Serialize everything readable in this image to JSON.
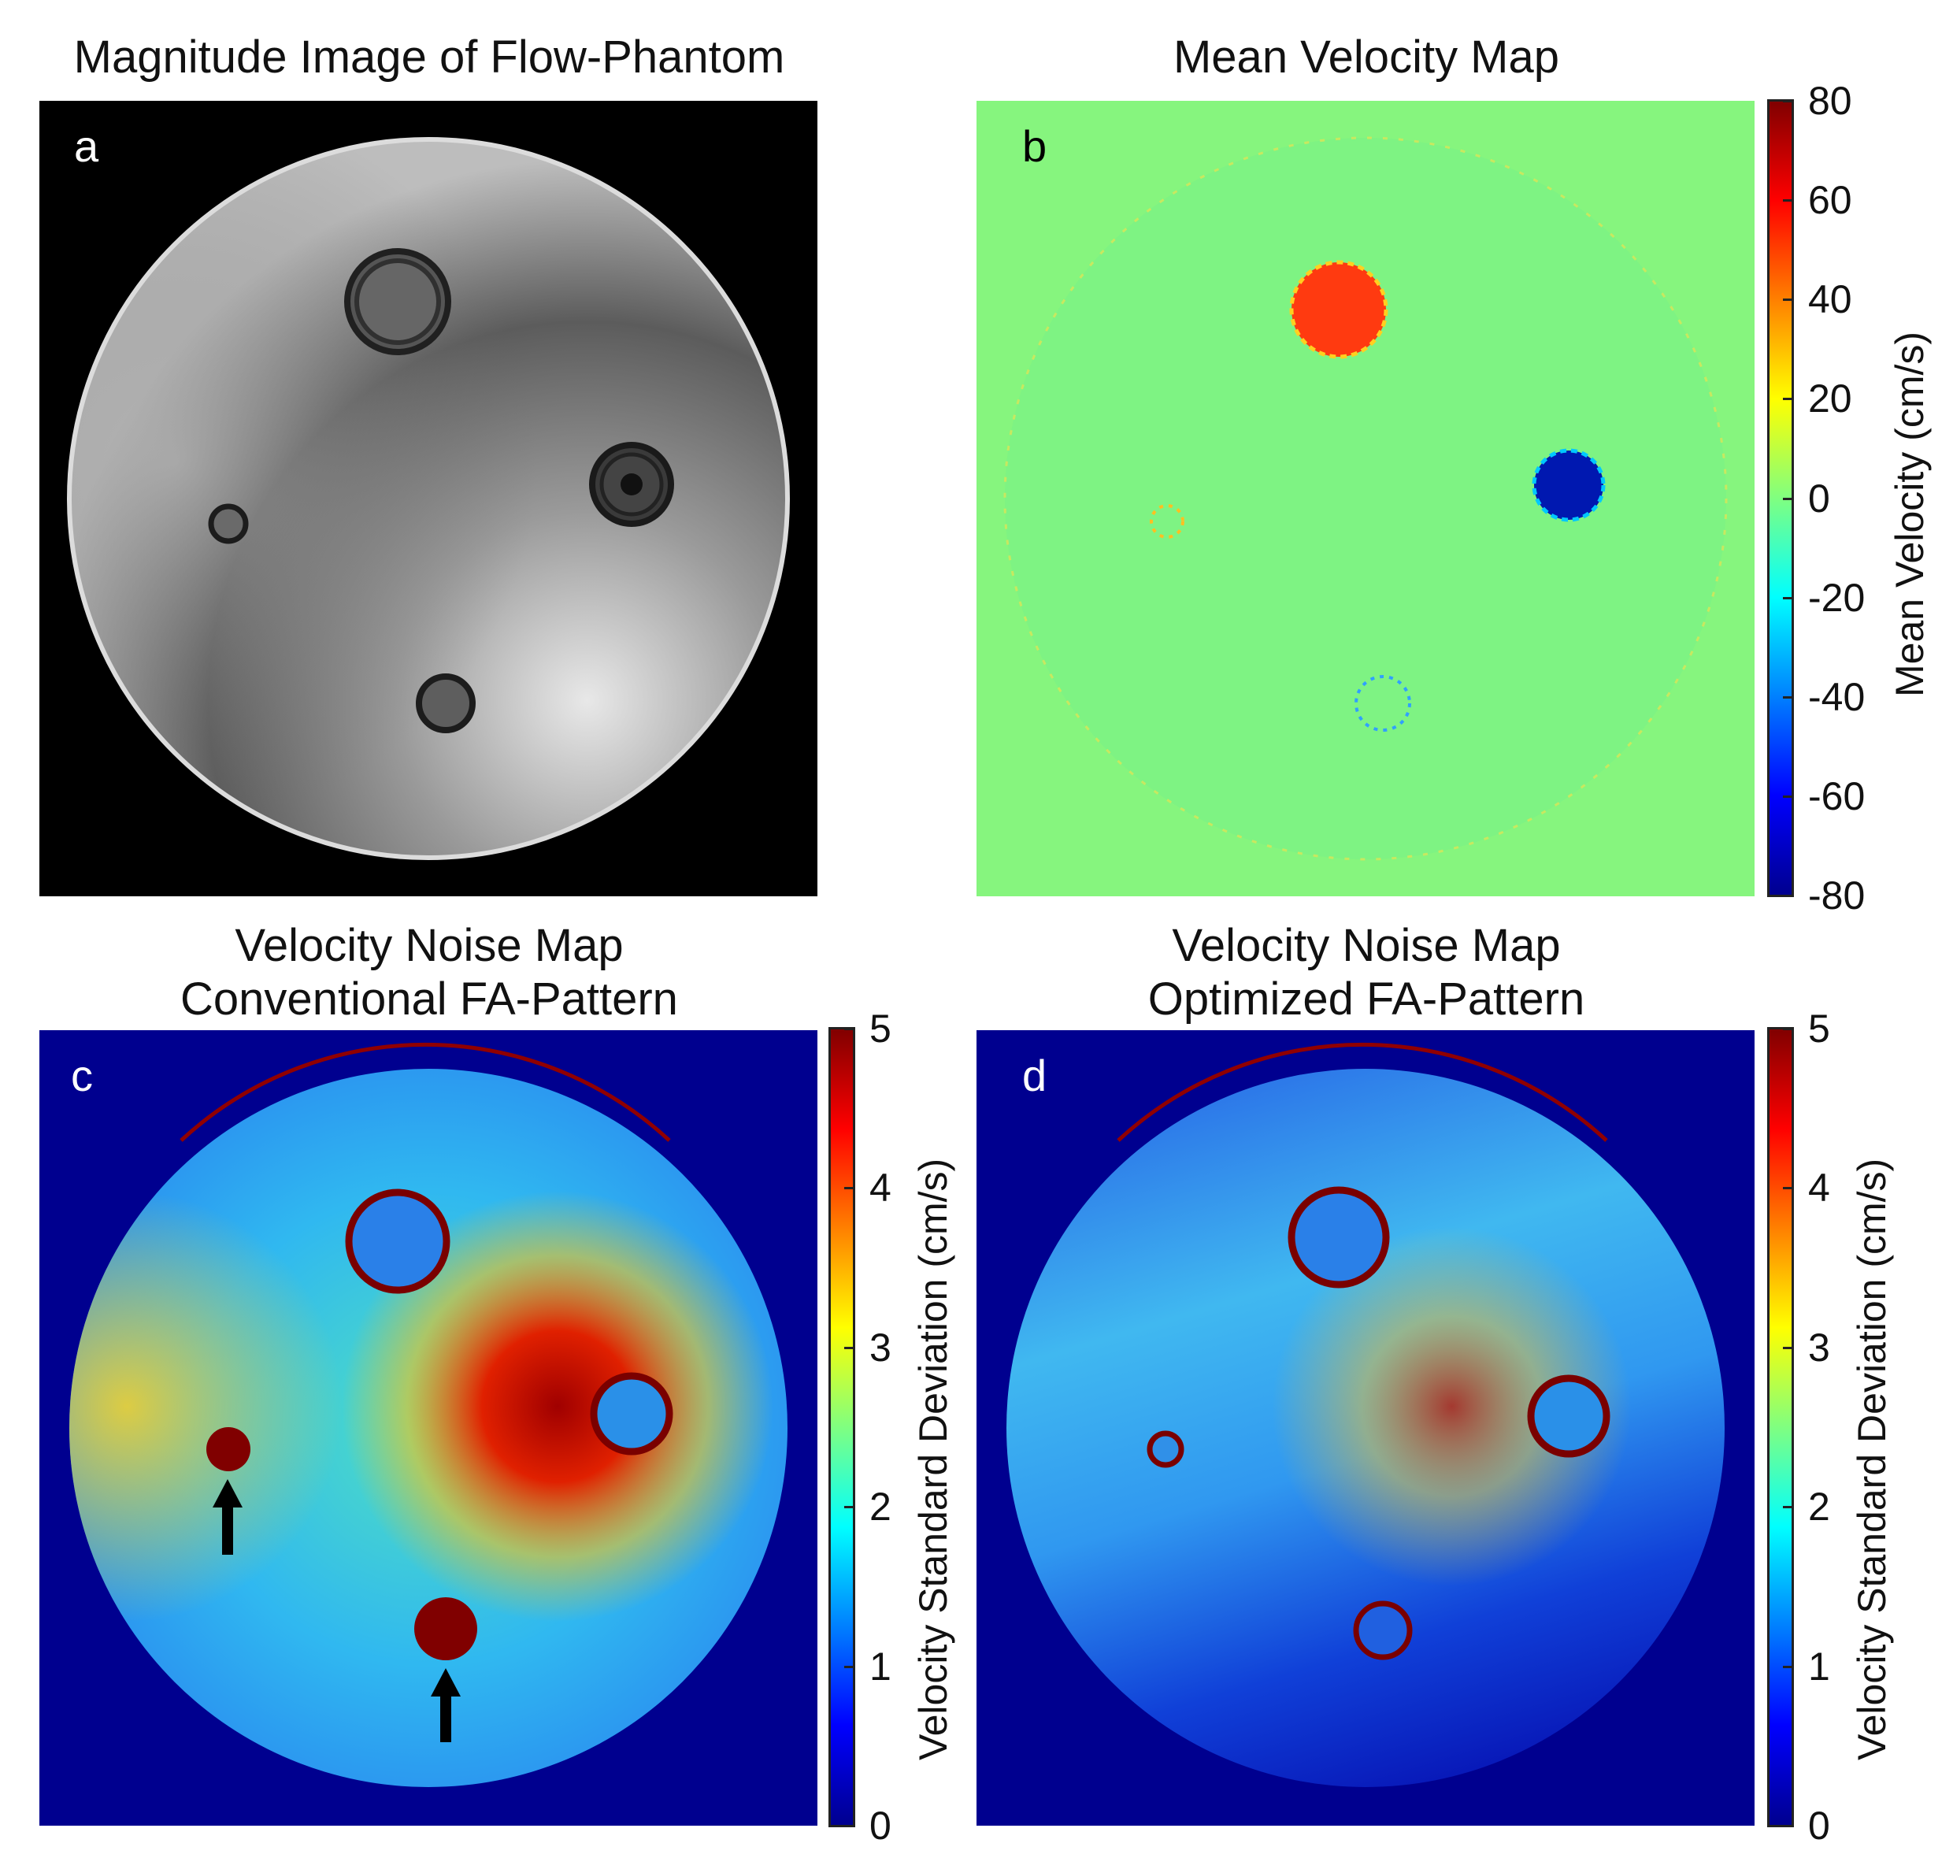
{
  "panels": {
    "a": {
      "label": "a",
      "title": "Magnitude Image of Flow-Phantom"
    },
    "b": {
      "label": "b",
      "title": "Mean Velocity Map",
      "colorbar": {
        "label": "Mean Velocity (cm/s)",
        "ticks": [
          "80",
          "60",
          "40",
          "20",
          "0",
          "-20",
          "-40",
          "-60",
          "-80"
        ],
        "range": [
          -80,
          80
        ]
      }
    },
    "c": {
      "label": "c",
      "title_line1": "Velocity Noise Map",
      "title_line2": "Conventional FA-Pattern",
      "colorbar": {
        "label": "Velocity Standard Deviation (cm/s)",
        "ticks": [
          "5",
          "4",
          "3",
          "2",
          "1",
          "0"
        ],
        "range": [
          0,
          5
        ]
      }
    },
    "d": {
      "label": "d",
      "title_line1": "Velocity Noise Map",
      "title_line2": "Optimized FA-Pattern",
      "colorbar": {
        "label": "Velocity Standard Deviation (cm/s)",
        "ticks": [
          "5",
          "4",
          "3",
          "2",
          "1",
          "0"
        ],
        "range": [
          0,
          5
        ]
      }
    }
  },
  "colors": {
    "jet_dark_red": "#800000",
    "jet_red": "#ff2000",
    "jet_yellow": "#ffff00",
    "jet_green": "#80ff80",
    "jet_cyan": "#00ffff",
    "jet_blue": "#0000ff",
    "jet_dark_blue": "#00008f",
    "background_navy": "#00008f",
    "velocity_background": "#86f57e"
  }
}
